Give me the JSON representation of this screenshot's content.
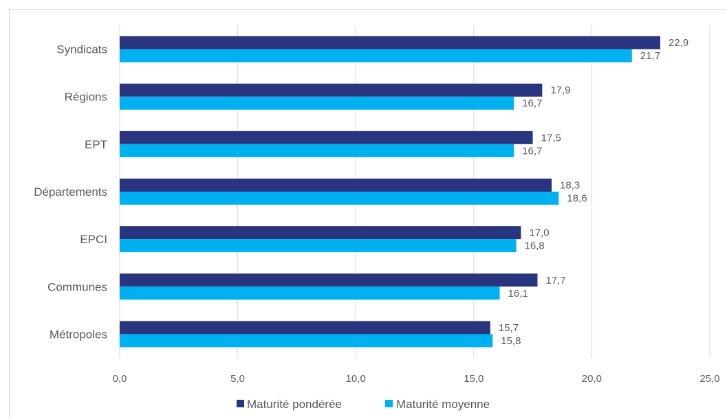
{
  "chart_data": {
    "type": "bar",
    "orientation": "horizontal",
    "categories": [
      "Syndicats",
      "Régions",
      "EPT",
      "Départements",
      "EPCI",
      "Communes",
      "Métropoles"
    ],
    "series": [
      {
        "name": "Maturité pondérée",
        "color": "#2a3580",
        "values": [
          22.9,
          17.9,
          17.5,
          18.3,
          17.0,
          17.7,
          15.7
        ],
        "labels": [
          "22,9",
          "17,9",
          "17,5",
          "18,3",
          "17,0",
          "17,7",
          "15,7"
        ]
      },
      {
        "name": "Maturité moyenne",
        "color": "#00b0f0",
        "values": [
          21.7,
          16.7,
          16.7,
          18.6,
          16.8,
          16.1,
          15.8
        ],
        "labels": [
          "21,7",
          "16,7",
          "16,7",
          "18,6",
          "16,8",
          "16,1",
          "15,8"
        ]
      }
    ],
    "xlim": [
      0,
      25
    ],
    "xticks": [
      0,
      5,
      10,
      15,
      20,
      25
    ],
    "xtick_labels": [
      "0,0",
      "5,0",
      "10,0",
      "15,0",
      "20,0",
      "25,0"
    ],
    "grid": true,
    "legend_position": "bottom",
    "title": "",
    "xlabel": "",
    "ylabel": ""
  }
}
